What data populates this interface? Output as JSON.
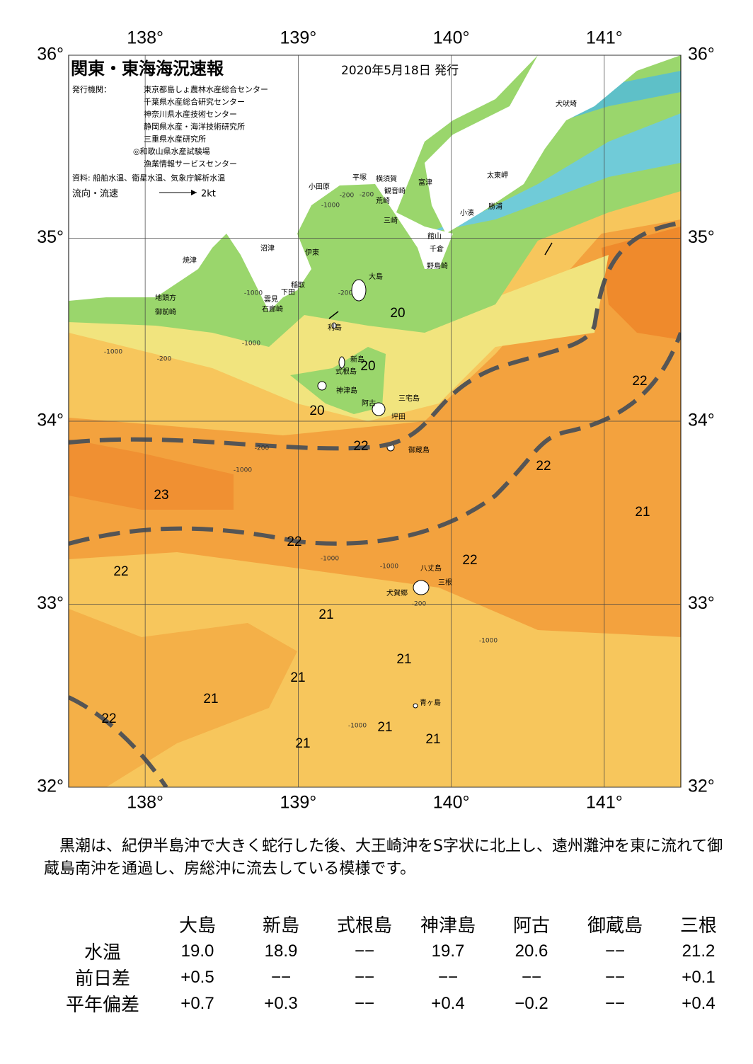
{
  "header": {
    "title": "関東・東海海況速報",
    "date": "2020年5月18日 発行",
    "issuer_label": "発行機関：",
    "issuers": [
      "東京都島しょ農林水産総合センター",
      "千葉県水産総合研究センター",
      "神奈川県水産技術センター",
      "静岡県水産・海洋技術研究所",
      "三重県水産研究所",
      "◎和歌山県水産試験場",
      "漁業情報サービスセンター"
    ],
    "source": "資料: 船舶水温、衛星水温、気象庁解析水温",
    "legend_label": "流向・流速",
    "legend_scale": "2kt"
  },
  "map": {
    "lon_ticks": [
      {
        "value": 138,
        "label": "138°"
      },
      {
        "value": 139,
        "label": "139°"
      },
      {
        "value": 140,
        "label": "140°"
      },
      {
        "value": 141,
        "label": "141°"
      }
    ],
    "lat_ticks": [
      {
        "value": 36,
        "label": "36°"
      },
      {
        "value": 35,
        "label": "35°"
      },
      {
        "value": 34,
        "label": "34°"
      },
      {
        "value": 33,
        "label": "33°"
      },
      {
        "value": 32,
        "label": "32°"
      }
    ],
    "places": [
      "犬吠埼",
      "太東岬",
      "勝浦",
      "小湊",
      "富津",
      "横須賀",
      "平塚",
      "観音崎",
      "小田原",
      "荒崎",
      "三崎",
      "館山",
      "千倉",
      "野島崎",
      "沼津",
      "伊東",
      "焼津",
      "稲取",
      "下田",
      "雲見",
      "石廊崎",
      "地頭方",
      "御前崎",
      "大島",
      "利島",
      "新島",
      "式根島",
      "神津島",
      "三宅島",
      "阿古",
      "坪田",
      "御蔵島",
      "八丈島",
      "三根",
      "犬賀郷",
      "青ヶ島"
    ],
    "isotherm_labels": [
      20,
      20,
      20,
      22,
      22,
      22,
      23,
      22,
      22,
      21,
      22,
      21,
      21,
      21,
      21,
      22,
      21,
      21,
      21
    ],
    "depth_labels": [
      -200,
      -200,
      -1000,
      -1000,
      -200,
      -1000,
      -200,
      -1000,
      -200,
      -1000,
      -1000,
      -1000,
      -200,
      -1000,
      -1000
    ]
  },
  "text": "黒潮は、紀伊半島沖で大きく蛇行した後、大王崎沖をS字状に北上し、遠州灘沖を東に流れて御蔵島南沖を通過し、房総沖に流去している模様です。",
  "table": {
    "columns": [
      "大島",
      "新島",
      "式根島",
      "神津島",
      "阿古",
      "御蔵島",
      "三根"
    ],
    "rows": [
      [
        "水温",
        "19.0",
        "18.9",
        "−−",
        "19.7",
        "20.6",
        "−−",
        "21.2"
      ],
      [
        "前日差",
        "+0.5",
        "−−",
        "−−",
        "−−",
        "−−",
        "−−",
        "+0.1"
      ],
      [
        "平年偏差",
        "+0.7",
        "+0.3",
        "−−",
        "+0.4",
        "−0.2",
        "−−",
        "+0.4"
      ]
    ]
  }
}
